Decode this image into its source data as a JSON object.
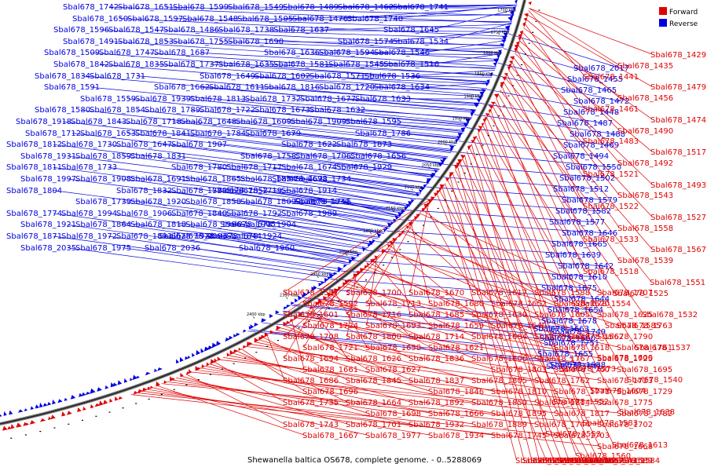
{
  "caption": "Shewanella baltica OS678, complete genome. - 0..5288069",
  "legend": {
    "forward_label": "Forward",
    "reverse_label": "Reverse",
    "forward_color": "#e00000",
    "reverse_color": "#0000e0"
  },
  "ticks": [
    "1700 kbp",
    "1750 kbp",
    "1800 kbp",
    "1850 kbp",
    "1900 kbp",
    "1950 kbp",
    "2000 kbp",
    "2050 kbp",
    "2100 kbp",
    "2150 kbp",
    "2200 kbp",
    "2250 kbp",
    "2300 kbp",
    "2350 kbp",
    "2400 kbp"
  ],
  "reverse_labels": [
    "Sbal678_1742",
    "Sbal678_1651",
    "Sbal678_1599",
    "Sbal678_1549",
    "Sbal678_1489",
    "Sbal678_1462",
    "Sbal678_1741",
    "Sbal678_1650",
    "Sbal678_1597",
    "Sbal678_1548",
    "Sbal678_1505",
    "Sbal678_1476",
    "Sbal678_1740",
    "Sbal678_1645",
    "Sbal678_1596",
    "Sbal678_1547",
    "Sbal678_1486",
    "Sbal678_1738",
    "Sbal678_1637",
    "Sbal678_1574",
    "Sbal678_1534",
    "Sbal678_1491",
    "Sbal678_1853",
    "Sbal678_1755",
    "Sbal678_1690",
    "Sbal678_1636",
    "Sbal678_1594",
    "Sbal678_1546",
    "Sbal678_1509",
    "Sbal678_1747",
    "Sbal678_1687",
    "Sbal678_1635",
    "Sbal678_1581",
    "Sbal678_1545",
    "Sbal678_1516",
    "Sbal678_1842",
    "Sbal678_1835",
    "Sbal678_1737",
    "Sbal678_1649",
    "Sbal678_1602",
    "Sbal678_1571",
    "Sbal678_1536",
    "Sbal678_1834",
    "Sbal678_1731",
    "Sbal678_1662",
    "Sbal678_1611",
    "Sbal678_1816",
    "Sbal678_1720",
    "Sbal678_1634",
    "Sbal678_1591",
    "Sbal678_1559",
    "Sbal678_1939",
    "Sbal678_1813",
    "Sbal678_1732",
    "Sbal678_1677",
    "Sbal678_1633",
    "Sbal678_1580",
    "Sbal678_1854",
    "Sbal678_1789",
    "Sbal678_1722",
    "Sbal678_1673",
    "Sbal678_1632",
    "Sbal678_1595",
    "Sbal678_1918",
    "Sbal678_1843",
    "Sbal678_1718",
    "Sbal678_1648",
    "Sbal678_1609",
    "Sbal678_1909",
    "Sbal678_1786",
    "Sbal678_1712",
    "Sbal678_1653",
    "Sbal678_1841",
    "Sbal678_1784",
    "Sbal678_1679",
    "Sbal678_1622",
    "Sbal678_1873",
    "Sbal678_1812",
    "Sbal678_1730",
    "Sbal678_1647",
    "Sbal678_1907",
    "Sbal678_1758",
    "Sbal678_1706",
    "Sbal678_1656",
    "Sbal678_1931",
    "Sbal678_1859",
    "Sbal678_1831",
    "Sbal678_1780",
    "Sbal678_1717",
    "Sbal678_1674",
    "Sbal678_1929",
    "Sbal678_1811",
    "Sbal678_1733",
    "Sbal678_1691",
    "Sbal678_1865",
    "Sbal678_1854",
    "Sbal678_1734",
    "Sbal678_1692",
    "Sbal678_1997",
    "Sbal678_1908",
    "Sbal678_1832",
    "Sbal678_1779",
    "Sbal678_1719",
    "Sbal678_1914",
    "Sbal678_1852",
    "Sbal678_1804",
    "Sbal678_1739",
    "Sbal678_1920",
    "Sbal678_1858",
    "Sbal678_1809",
    "Sbal678_1756",
    "Sbal678_1830",
    "Sbal678_1774",
    "Sbal678_1994",
    "Sbal678_1906",
    "Sbal678_1840",
    "Sbal678_1792",
    "Sbal678_1989",
    "Sbal678_1905",
    "Sbal678_1921",
    "Sbal678_1864",
    "Sbal678_1818",
    "Sbal678_1986",
    "Sbal678_1904",
    "Sbal678_1844",
    "Sbal678_1928",
    "Sbal678_1871",
    "Sbal678_1972",
    "Sbal678_1893",
    "Sbal678_2003",
    "Sbal678_1924",
    "Sbal678_2036",
    "Sbal678_1960",
    "Sbal678_2035",
    "Sbal678_1975",
    "Sbal678_2017",
    "Sbal678_1455",
    "Sbal678_1465",
    "Sbal678_1472",
    "Sbal678_1448",
    "Sbal678_1487",
    "Sbal678_1488",
    "Sbal678_1469",
    "Sbal678_1494",
    "Sbal678_1550",
    "Sbal678_1502",
    "Sbal678_1512",
    "Sbal678_1579",
    "Sbal678_1582",
    "Sbal678_1577",
    "Sbal678_1646",
    "Sbal678_1665",
    "Sbal678_1639",
    "Sbal678_1642",
    "Sbal678_1610",
    "Sbal678_1675",
    "Sbal678_1644",
    "Sbal678_1654",
    "Sbal678_1678",
    "Sbal678_1749",
    "Sbal678_1751",
    "Sbal678_1655",
    "Sbal678_1688",
    "Sbal678_1660",
    "Sbal678_1663",
    "Sbal678_1641"
  ],
  "forward_labels": [
    "Sbal678_1429",
    "Sbal678_1435",
    "Sbal678_1441",
    "Sbal678_1479",
    "Sbal678_1456",
    "Sbal678_1461",
    "Sbal678_1474",
    "Sbal678_1490",
    "Sbal678_1483",
    "Sbal678_1517",
    "Sbal678_1492",
    "Sbal678_1521",
    "Sbal678_1493",
    "Sbal678_1543",
    "Sbal678_1522",
    "Sbal678_1527",
    "Sbal678_1558",
    "Sbal678_1533",
    "Sbal678_1567",
    "Sbal678_1539",
    "Sbal678_1518",
    "Sbal678_1551",
    "Sbal678_1525",
    "Sbal678_1554",
    "Sbal678_1532",
    "Sbal678_1585",
    "Sbal678_1562",
    "Sbal678_1537",
    "Sbal678_1600",
    "Sbal678_1573",
    "Sbal678_1540",
    "Sbal678_1604",
    "Sbal678_1552",
    "Sbal678_1638",
    "Sbal678_1583",
    "Sbal678_1553",
    "Sbal678_1613",
    "Sbal678_1560",
    "Sbal678_1614",
    "Sbal678_1584",
    "Sbal678_1657",
    "Sbal678_1629",
    "Sbal678_1589",
    "Sbal678_1565",
    "Sbal678_1572",
    "Sbal678_1669",
    "Sbal678_1615",
    "Sbal678_1586",
    "Sbal678_1643",
    "Sbal678_1616",
    "Sbal678_1587",
    "Sbal678_1700",
    "Sbal678_1670",
    "Sbal678_1617",
    "Sbal678_1588",
    "Sbal678_1707",
    "Sbal678_1592",
    "Sbal678_1713",
    "Sbal678_1680",
    "Sbal678_1652",
    "Sbal678_1620",
    "Sbal678_1625",
    "Sbal678_1601",
    "Sbal678_1716",
    "Sbal678_1685",
    "Sbal678_1630",
    "Sbal678_1605",
    "Sbal678_1763",
    "Sbal678_1724",
    "Sbal678_1693",
    "Sbal678_1659",
    "Sbal678_1640",
    "Sbal678_1612",
    "Sbal678_1790",
    "Sbal678_1708",
    "Sbal678_1800",
    "Sbal678_1714",
    "Sbal678_1684",
    "Sbal678_1618",
    "Sbal678_1761",
    "Sbal678_1721",
    "Sbal678_1658",
    "Sbal678_1621",
    "Sbal678_1806",
    "Sbal678_1767",
    "Sbal678_1725",
    "Sbal678_1694",
    "Sbal678_1626",
    "Sbal678_1836",
    "Sbal678_1803",
    "Sbal678_1760",
    "Sbal678_1695",
    "Sbal678_1661",
    "Sbal678_1627",
    "Sbal678_1837",
    "Sbal678_1805",
    "Sbal678_1762",
    "Sbal678_1723",
    "Sbal678_1686",
    "Sbal678_1845",
    "Sbal678_1846",
    "Sbal678_1810",
    "Sbal678_1771",
    "Sbal678_1729",
    "Sbal678_1696",
    "Sbal678_1664",
    "Sbal678_1892",
    "Sbal678_1850",
    "Sbal678_1814",
    "Sbal678_1775",
    "Sbal678_1735",
    "Sbal678_1698",
    "Sbal678_1666",
    "Sbal678_1895",
    "Sbal678_1817",
    "Sbal678_1782",
    "Sbal678_1743",
    "Sbal678_1701",
    "Sbal678_1932",
    "Sbal678_1889",
    "Sbal678_1744",
    "Sbal678_1702",
    "Sbal678_1667",
    "Sbal678_1977",
    "Sbal678_1934",
    "Sbal678_1745",
    "Sbal678_1703",
    "Sbal678_1668"
  ]
}
